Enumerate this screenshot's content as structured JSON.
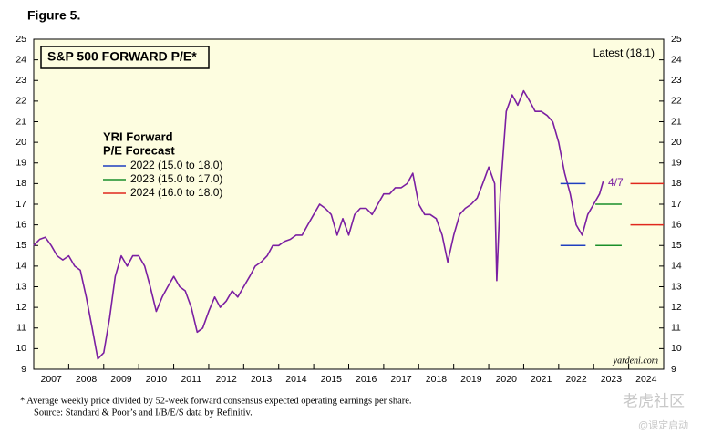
{
  "chart_data": {
    "type": "line",
    "figure_label": "Figure 5.",
    "title": "S&P 500 FORWARD P/E*",
    "latest": "Latest (18.1)",
    "legend_title": [
      "YRI Forward",
      "P/E Forecast"
    ],
    "annotation": "4/7",
    "source_site": "yardeni.com",
    "footnotes": [
      "*  Average weekly price divided by 52-week forward consensus expected operating earnings per share.",
      "Source: Standard & Poor’s and I/B/E/S data by Refinitiv."
    ],
    "watermark": [
      "老虎社区",
      "@课定启动"
    ],
    "categories": [
      "2007",
      "2008",
      "2009",
      "2010",
      "2011",
      "2012",
      "2013",
      "2014",
      "2015",
      "2016",
      "2017",
      "2018",
      "2019",
      "2020",
      "2021",
      "2022",
      "2023",
      "2024"
    ],
    "xlim": [
      2007,
      2025
    ],
    "ylim": [
      9,
      25
    ],
    "yticks": [
      9,
      10,
      11,
      12,
      13,
      14,
      15,
      16,
      17,
      18,
      19,
      20,
      21,
      22,
      23,
      24,
      25
    ],
    "y2lim": [
      9,
      25
    ],
    "y2ticks": [
      9,
      10,
      11,
      12,
      13,
      14,
      15,
      16,
      17,
      18,
      19,
      20,
      21,
      22,
      23,
      24,
      25
    ],
    "series": [
      {
        "color": "#7b1fa2",
        "x": [
          2007,
          2007.17,
          2007.33,
          2007.5,
          2007.67,
          2007.83,
          2008,
          2008.17,
          2008.33,
          2008.5,
          2008.67,
          2008.83,
          2009,
          2009.17,
          2009.33,
          2009.5,
          2009.67,
          2009.83,
          2010,
          2010.17,
          2010.33,
          2010.5,
          2010.67,
          2010.83,
          2011,
          2011.17,
          2011.33,
          2011.5,
          2011.67,
          2011.83,
          2012,
          2012.17,
          2012.33,
          2012.5,
          2012.67,
          2012.83,
          2013,
          2013.17,
          2013.33,
          2013.5,
          2013.67,
          2013.83,
          2014,
          2014.17,
          2014.33,
          2014.5,
          2014.67,
          2014.83,
          2015,
          2015.17,
          2015.33,
          2015.5,
          2015.67,
          2015.83,
          2016,
          2016.17,
          2016.33,
          2016.5,
          2016.67,
          2016.83,
          2017,
          2017.17,
          2017.33,
          2017.5,
          2017.67,
          2017.83,
          2018,
          2018.17,
          2018.33,
          2018.5,
          2018.67,
          2018.83,
          2019,
          2019.17,
          2019.33,
          2019.5,
          2019.67,
          2019.83,
          2020,
          2020.17,
          2020.23,
          2020.33,
          2020.5,
          2020.67,
          2020.83,
          2021,
          2021.17,
          2021.33,
          2021.5,
          2021.67,
          2021.83,
          2022,
          2022.17,
          2022.33,
          2022.5,
          2022.67,
          2022.83,
          2023,
          2023.17,
          2023.27
        ],
        "values": [
          15.0,
          15.3,
          15.4,
          15.0,
          14.5,
          14.3,
          14.5,
          14.0,
          13.8,
          12.5,
          11.0,
          9.5,
          9.8,
          11.5,
          13.5,
          14.5,
          14.0,
          14.5,
          14.5,
          14.0,
          13.0,
          11.8,
          12.5,
          13.0,
          13.5,
          13.0,
          12.8,
          12.0,
          10.8,
          11.0,
          11.8,
          12.5,
          12.0,
          12.3,
          12.8,
          12.5,
          13.0,
          13.5,
          14.0,
          14.2,
          14.5,
          15.0,
          15.0,
          15.2,
          15.3,
          15.5,
          15.5,
          16.0,
          16.5,
          17.0,
          16.8,
          16.5,
          15.5,
          16.3,
          15.5,
          16.5,
          16.8,
          16.8,
          16.5,
          17.0,
          17.5,
          17.5,
          17.8,
          17.8,
          18.0,
          18.5,
          17.0,
          16.5,
          16.5,
          16.3,
          15.5,
          14.2,
          15.5,
          16.5,
          16.8,
          17.0,
          17.3,
          18.0,
          18.8,
          18.0,
          13.3,
          17.5,
          21.5,
          22.3,
          21.8,
          22.5,
          22.0,
          21.5,
          21.5,
          21.3,
          21.0,
          20.0,
          18.5,
          17.5,
          16.0,
          15.5,
          16.5,
          17.0,
          17.5,
          18.1
        ]
      }
    ],
    "forecasts": [
      {
        "name": "2022 (15.0 to 18.0)",
        "color": "#1f3fbf",
        "xrange": [
          2022.05,
          2022.77
        ],
        "values": [
          15.0,
          18.0
        ]
      },
      {
        "name": "2023 (15.0 to 17.0)",
        "color": "#1a8f2a",
        "xrange": [
          2023.05,
          2023.8
        ],
        "values": [
          15.0,
          17.0
        ]
      },
      {
        "name": "2024 (16.0 to 18.0)",
        "color": "#e0281e",
        "xrange": [
          2024.05,
          2025
        ],
        "values": [
          16.0,
          18.0
        ]
      }
    ]
  }
}
